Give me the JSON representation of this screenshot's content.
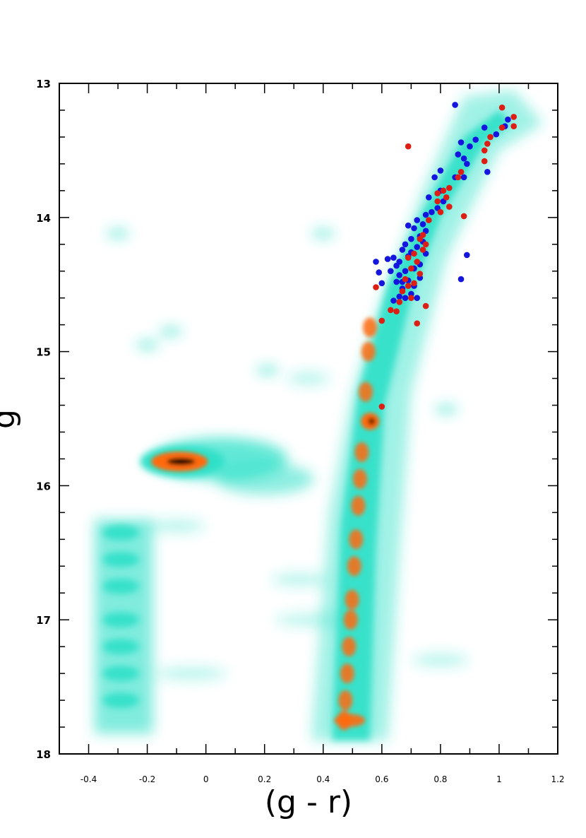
{
  "chart_data": {
    "type": "scatter",
    "title": "",
    "xlabel": "(g - r)",
    "ylabel": "g",
    "xlim": [
      -0.5,
      1.2
    ],
    "ylim": [
      18,
      13
    ],
    "y_inverted": true,
    "grid": false,
    "x_ticks": [
      -0.4,
      -0.2,
      0,
      0.2,
      0.4,
      0.6,
      0.8,
      1,
      1.2
    ],
    "x_tick_labels": [
      "-0.4",
      "-0.2",
      "0",
      "0.2",
      "0.4",
      "0.6",
      "0.8",
      "1",
      "1.2"
    ],
    "y_ticks": [
      13,
      14,
      15,
      16,
      17,
      18
    ],
    "y_tick_labels": [
      "13",
      "14",
      "15",
      "16",
      "17",
      "18"
    ],
    "background_density": {
      "kind": "Hess diagram (stellar density)",
      "colormap": [
        "#ffffff",
        "#2ee0c8",
        "#ff6a10",
        "#000000"
      ],
      "features": [
        {
          "name": "red giant branch",
          "x": [
            0.48,
            0.9
          ],
          "y": [
            17.8,
            13.2
          ]
        },
        {
          "name": "red clump",
          "x": 0.56,
          "y": 15.52
        },
        {
          "name": "horizontal branch clump",
          "x": -0.09,
          "y": 15.82
        },
        {
          "name": "blue horizontal branch",
          "x": [
            -0.35,
            -0.2
          ],
          "y": [
            16.3,
            17.8
          ]
        }
      ]
    },
    "series": [
      {
        "color": "#1515e0",
        "points": [
          [
            0.85,
            13.16
          ],
          [
            0.95,
            13.33
          ],
          [
            1.02,
            13.32
          ],
          [
            0.99,
            13.38
          ],
          [
            1.03,
            13.27
          ],
          [
            0.92,
            13.42
          ],
          [
            0.9,
            13.47
          ],
          [
            0.87,
            13.44
          ],
          [
            0.88,
            13.56
          ],
          [
            0.86,
            13.53
          ],
          [
            0.89,
            13.6
          ],
          [
            0.96,
            13.66
          ],
          [
            0.85,
            13.7
          ],
          [
            0.88,
            13.7
          ],
          [
            0.8,
            13.65
          ],
          [
            0.78,
            13.7
          ],
          [
            0.8,
            13.8
          ],
          [
            0.76,
            13.85
          ],
          [
            0.81,
            13.88
          ],
          [
            0.79,
            13.93
          ],
          [
            0.77,
            13.96
          ],
          [
            0.75,
            13.98
          ],
          [
            0.72,
            14.02
          ],
          [
            0.74,
            14.05
          ],
          [
            0.71,
            14.08
          ],
          [
            0.75,
            14.1
          ],
          [
            0.69,
            14.06
          ],
          [
            0.73,
            14.14
          ],
          [
            0.7,
            14.16
          ],
          [
            0.74,
            14.18
          ],
          [
            0.68,
            14.2
          ],
          [
            0.72,
            14.22
          ],
          [
            0.67,
            14.24
          ],
          [
            0.7,
            14.26
          ],
          [
            0.75,
            14.27
          ],
          [
            0.64,
            14.3
          ],
          [
            0.69,
            14.29
          ],
          [
            0.89,
            14.28
          ],
          [
            0.66,
            14.33
          ],
          [
            0.62,
            14.31
          ],
          [
            0.73,
            14.35
          ],
          [
            0.58,
            14.33
          ],
          [
            0.65,
            14.36
          ],
          [
            0.71,
            14.38
          ],
          [
            0.68,
            14.4
          ],
          [
            0.63,
            14.4
          ],
          [
            0.59,
            14.41
          ],
          [
            0.66,
            14.43
          ],
          [
            0.73,
            14.45
          ],
          [
            0.69,
            14.47
          ],
          [
            0.65,
            14.48
          ],
          [
            0.6,
            14.49
          ],
          [
            0.71,
            14.51
          ],
          [
            0.67,
            14.53
          ],
          [
            0.87,
            14.46
          ],
          [
            0.7,
            14.57
          ],
          [
            0.66,
            14.59
          ],
          [
            0.68,
            14.6
          ],
          [
            0.72,
            14.6
          ],
          [
            0.64,
            14.62
          ],
          [
            0.67,
            14.48
          ]
        ]
      },
      {
        "color": "#dc1e14",
        "points": [
          [
            1.01,
            13.18
          ],
          [
            1.05,
            13.25
          ],
          [
            1.05,
            13.32
          ],
          [
            1.01,
            13.33
          ],
          [
            0.97,
            13.4
          ],
          [
            0.96,
            13.45
          ],
          [
            0.95,
            13.5
          ],
          [
            0.69,
            13.47
          ],
          [
            0.95,
            13.58
          ],
          [
            0.87,
            13.66
          ],
          [
            0.86,
            13.7
          ],
          [
            0.83,
            13.78
          ],
          [
            0.81,
            13.8
          ],
          [
            0.79,
            13.82
          ],
          [
            0.82,
            13.85
          ],
          [
            0.79,
            13.88
          ],
          [
            0.83,
            13.92
          ],
          [
            0.8,
            13.96
          ],
          [
            0.88,
            13.99
          ],
          [
            0.76,
            14.02
          ],
          [
            0.74,
            14.13
          ],
          [
            0.73,
            14.16
          ],
          [
            0.75,
            14.2
          ],
          [
            0.74,
            14.24
          ],
          [
            0.71,
            14.27
          ],
          [
            0.69,
            14.3
          ],
          [
            0.72,
            14.33
          ],
          [
            0.7,
            14.38
          ],
          [
            0.73,
            14.42
          ],
          [
            0.68,
            14.46
          ],
          [
            0.71,
            14.49
          ],
          [
            0.69,
            14.51
          ],
          [
            0.67,
            14.55
          ],
          [
            0.7,
            14.6
          ],
          [
            0.66,
            14.63
          ],
          [
            0.75,
            14.66
          ],
          [
            0.63,
            14.69
          ],
          [
            0.65,
            14.7
          ],
          [
            0.6,
            14.77
          ],
          [
            0.72,
            14.79
          ],
          [
            0.58,
            14.52
          ],
          [
            0.6,
            15.41
          ]
        ]
      }
    ]
  }
}
